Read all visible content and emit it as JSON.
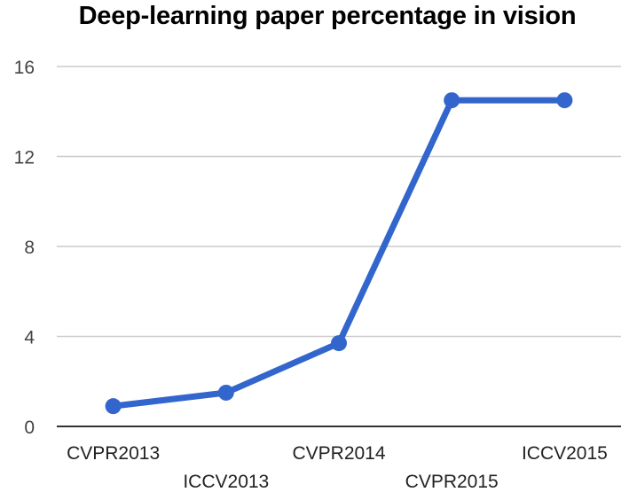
{
  "chart_data": {
    "type": "line",
    "title": "Deep-learning paper percentage in vision",
    "xlabel": "",
    "ylabel": "",
    "categories": [
      "CVPR2013",
      "ICCV2013",
      "CVPR2014",
      "CVPR2015",
      "ICCV2015"
    ],
    "series": [
      {
        "name": "Deep-learning paper percentage",
        "values": [
          0.9,
          1.5,
          3.7,
          14.5,
          14.5
        ],
        "color": "#3366cc"
      }
    ],
    "ylim": [
      0,
      16
    ],
    "yticks": [
      0,
      4,
      8,
      12,
      16
    ],
    "grid": true,
    "legend": "none"
  },
  "colors": {
    "line": "#3366cc",
    "grid": "#cccccc",
    "baseline": "#333333"
  }
}
